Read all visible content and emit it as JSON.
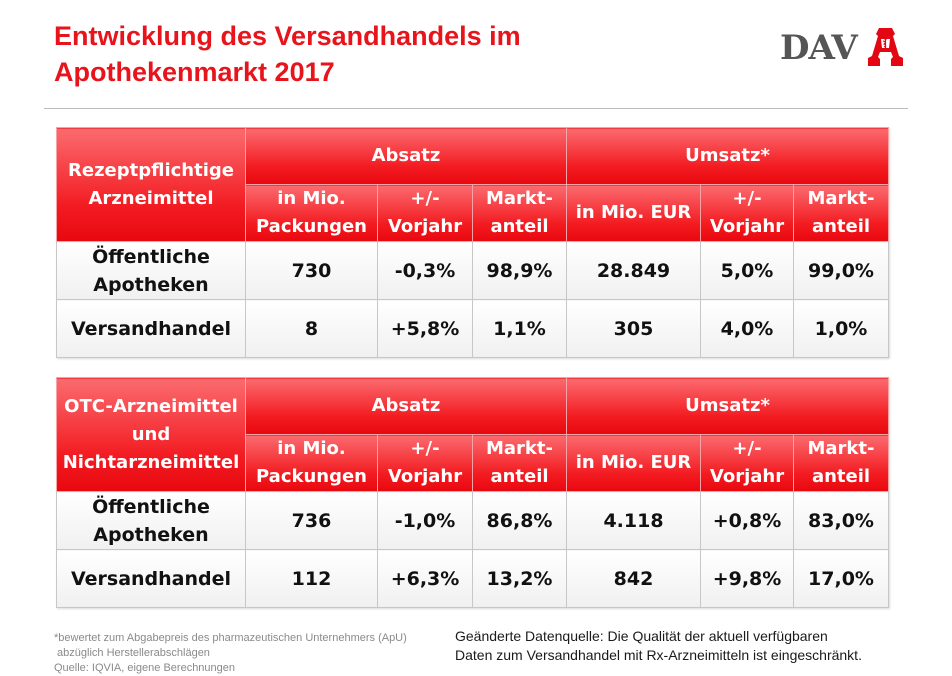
{
  "header": {
    "title_line1": "Entwicklung des Versandhandels im",
    "title_line2": "Apothekenmarkt 2017",
    "logo_text": "DAV",
    "logo_icon": "apotheken-a-icon",
    "accent_color": "#e8141c"
  },
  "tables": [
    {
      "corner_line1": "Rezeptpflichtige",
      "corner_line2": "Arzneimittel",
      "corner_line3": "",
      "group1": "Absatz",
      "group2": "Umsatz*",
      "sub": [
        {
          "line1": "in Mio.",
          "line2": "Packungen"
        },
        {
          "line1": "+/-",
          "line2": "Vorjahr"
        },
        {
          "line1": "Markt-",
          "line2": "anteil"
        },
        {
          "line1": "in Mio. EUR",
          "line2": ""
        },
        {
          "line1": "+/-",
          "line2": "Vorjahr"
        },
        {
          "line1": "Markt-",
          "line2": "anteil"
        }
      ],
      "rows": [
        {
          "label_line1": "Öffentliche",
          "label_line2": "Apotheken",
          "cells": [
            "730",
            "-0,3%",
            "98,9%",
            "28.849",
            "5,0%",
            "99,0%"
          ]
        },
        {
          "label_line1": "Versandhandel",
          "label_line2": "",
          "cells": [
            "8",
            "+5,8%",
            "1,1%",
            "305",
            "4,0%",
            "1,0%"
          ]
        }
      ]
    },
    {
      "corner_line1": "OTC-Arzneimittel",
      "corner_line2": "und",
      "corner_line3": "Nichtarzneimittel",
      "group1": "Absatz",
      "group2": "Umsatz*",
      "sub": [
        {
          "line1": "in Mio.",
          "line2": "Packungen"
        },
        {
          "line1": "+/-",
          "line2": "Vorjahr"
        },
        {
          "line1": "Markt-",
          "line2": "anteil"
        },
        {
          "line1": "in Mio. EUR",
          "line2": ""
        },
        {
          "line1": "+/-",
          "line2": "Vorjahr"
        },
        {
          "line1": "Markt-",
          "line2": "anteil"
        }
      ],
      "rows": [
        {
          "label_line1": "Öffentliche",
          "label_line2": "Apotheken",
          "cells": [
            "736",
            "-1,0%",
            "86,8%",
            "4.118",
            "+0,8%",
            "83,0%"
          ]
        },
        {
          "label_line1": "Versandhandel",
          "label_line2": "",
          "cells": [
            "112",
            "+6,3%",
            "13,2%",
            "842",
            "+9,8%",
            "17,0%"
          ]
        }
      ]
    }
  ],
  "footnote": {
    "line1": "*bewertet zum Abgabepreis des pharmazeutischen Unternehmers (ApU)",
    "line2": " abzüglich Herstellerabschlägen",
    "line3": "Quelle: IQVIA, eigene Berechnungen"
  },
  "note": {
    "line1": "Geänderte Datenquelle: Die Qualität der aktuell verfügbaren",
    "line2": "Daten zum Versandhandel mit Rx-Arzneimitteln ist eingeschränkt."
  }
}
